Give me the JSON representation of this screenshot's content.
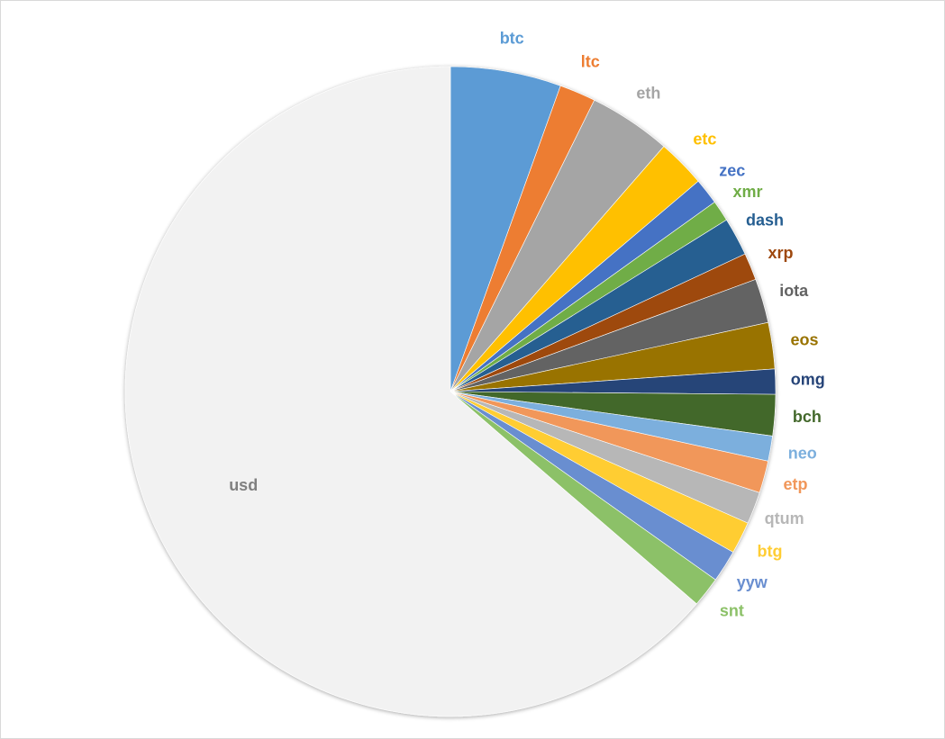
{
  "chart_data": {
    "type": "pie",
    "title": "",
    "start_angle_deg": 0,
    "direction": "clockwise",
    "slices": [
      {
        "label": "btc",
        "value": 5.5,
        "color": "#5b9bd5"
      },
      {
        "label": "ltc",
        "value": 1.8,
        "color": "#ed7d31"
      },
      {
        "label": "eth",
        "value": 4.1,
        "color": "#a5a5a5"
      },
      {
        "label": "etc",
        "value": 2.4,
        "color": "#ffc000"
      },
      {
        "label": "zec",
        "value": 1.3,
        "color": "#4472c4"
      },
      {
        "label": "xmr",
        "value": 1.05,
        "color": "#70ad47"
      },
      {
        "label": "dash",
        "value": 1.9,
        "color": "#255e91"
      },
      {
        "label": "xrp",
        "value": 1.35,
        "color": "#9e480e"
      },
      {
        "label": "iota",
        "value": 2.2,
        "color": "#636363"
      },
      {
        "label": "eos",
        "value": 2.3,
        "color": "#997300"
      },
      {
        "label": "omg",
        "value": 1.25,
        "color": "#264478"
      },
      {
        "label": "bch",
        "value": 2.05,
        "color": "#43682b"
      },
      {
        "label": "neo",
        "value": 1.25,
        "color": "#7cafdd"
      },
      {
        "label": "etp",
        "value": 1.6,
        "color": "#f1975a"
      },
      {
        "label": "qtum",
        "value": 1.6,
        "color": "#b7b7b7"
      },
      {
        "label": "btg",
        "value": 1.6,
        "color": "#ffcd33"
      },
      {
        "label": "yyw",
        "value": 1.6,
        "color": "#698ed0"
      },
      {
        "label": "snt",
        "value": 1.5,
        "color": "#8cc168"
      },
      {
        "label": "usd",
        "value": 63.7,
        "color": "#f2f2f2",
        "label_color": "#808080"
      }
    ]
  }
}
